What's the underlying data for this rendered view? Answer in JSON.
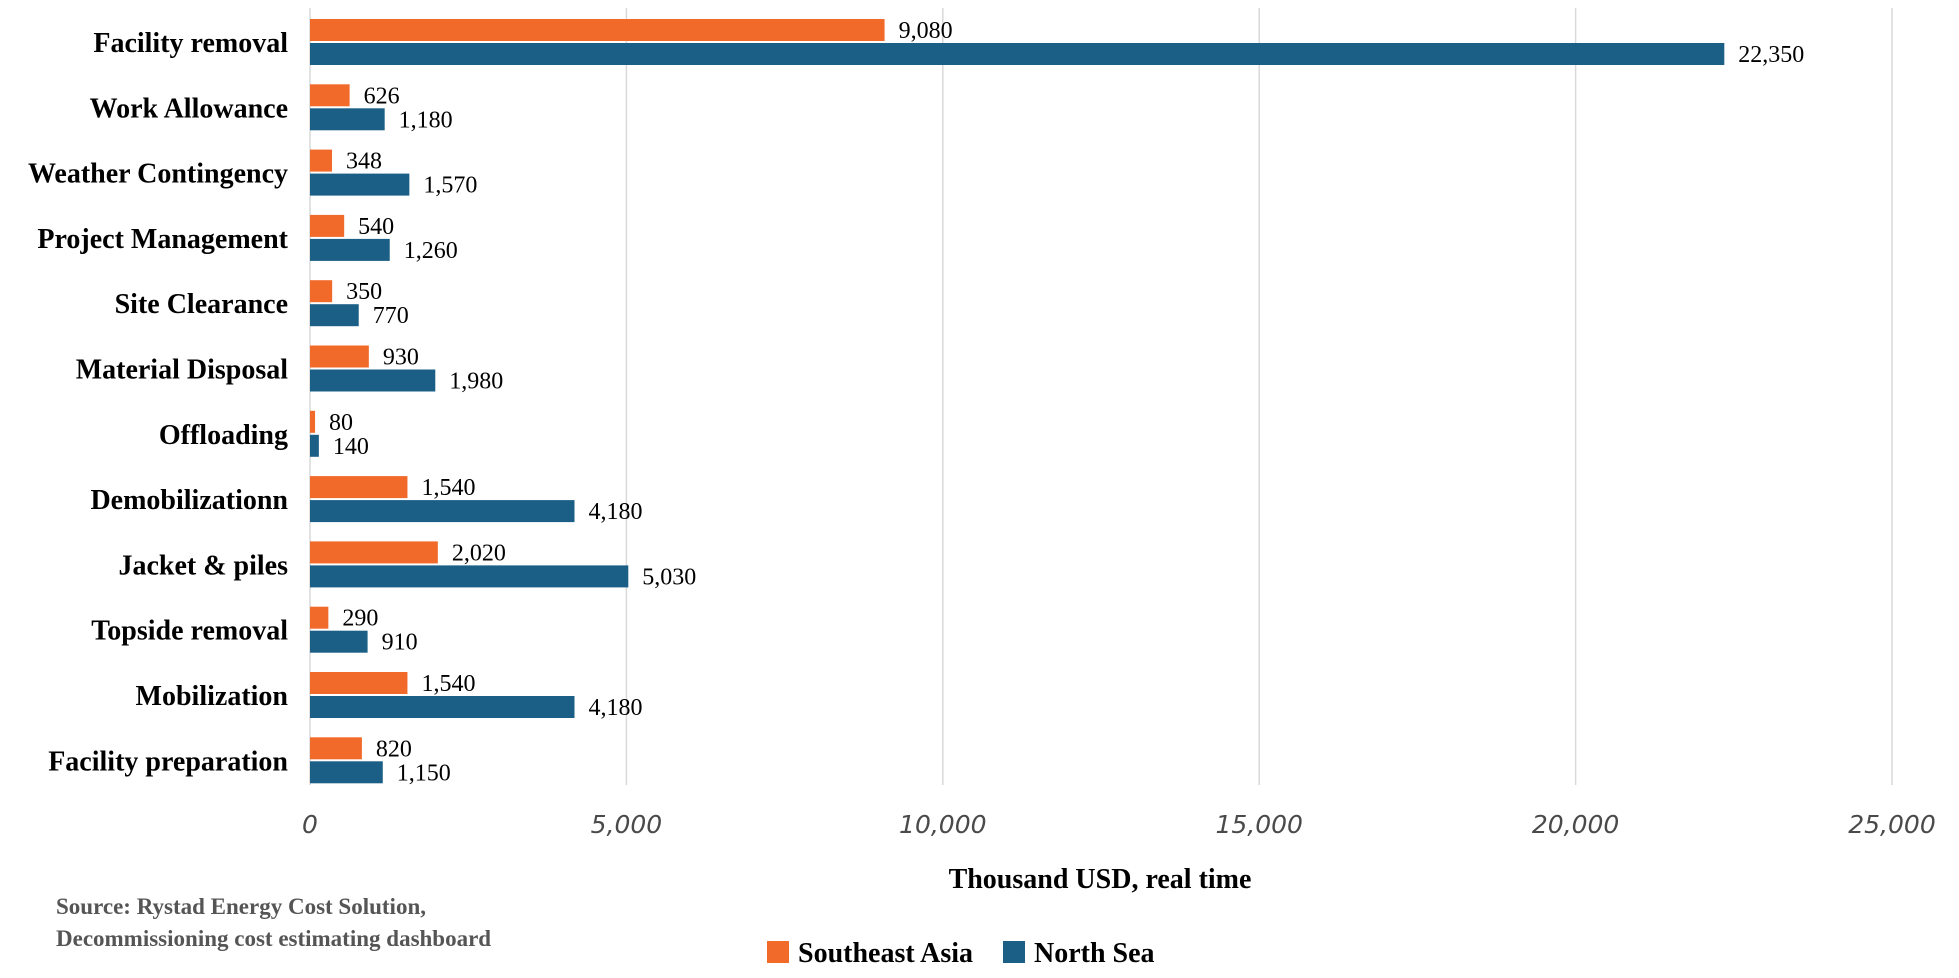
{
  "chart_data": {
    "type": "bar",
    "orientation": "horizontal",
    "categories": [
      "Facility removal",
      "Work Allowance",
      "Weather Contingency",
      "Project Management",
      "Site Clearance",
      "Material Disposal",
      "Offloading",
      "Demobilizationn",
      "Jacket & piles",
      "Topside removal",
      "Mobilization",
      "Facility preparation"
    ],
    "series": [
      {
        "name": "Southeast Asia",
        "color": "#F26A2A",
        "values": [
          9080,
          626,
          348,
          540,
          350,
          930,
          80,
          1540,
          2020,
          290,
          1540,
          820
        ],
        "labels": [
          "9,080",
          "626",
          "348",
          "540",
          "350",
          "930",
          "80",
          "1,540",
          "2,020",
          "290",
          "1,540",
          "820"
        ]
      },
      {
        "name": "North Sea",
        "color": "#1B5F86",
        "values": [
          22350,
          1180,
          1570,
          1260,
          770,
          1980,
          140,
          4180,
          5030,
          910,
          4180,
          1150
        ],
        "labels": [
          "22,350",
          "1,180",
          "1,570",
          "1,260",
          "770",
          "1,980",
          "140",
          "4,180",
          "5,030",
          "910",
          "4,180",
          "1,150"
        ]
      }
    ],
    "xlim": [
      0,
      25000
    ],
    "ticks": [
      0,
      5000,
      10000,
      15000,
      20000,
      25000
    ],
    "tick_labels": [
      "0",
      "5,000",
      "10,000",
      "15,000",
      "20,000",
      "25,000"
    ],
    "xlabel": "Thousand USD, real time",
    "grid": true,
    "legend_position": "bottom"
  },
  "source": {
    "line1": "Source: Rystad Energy Cost Solution,",
    "line2": "Decommissioning cost estimating dashboard"
  }
}
